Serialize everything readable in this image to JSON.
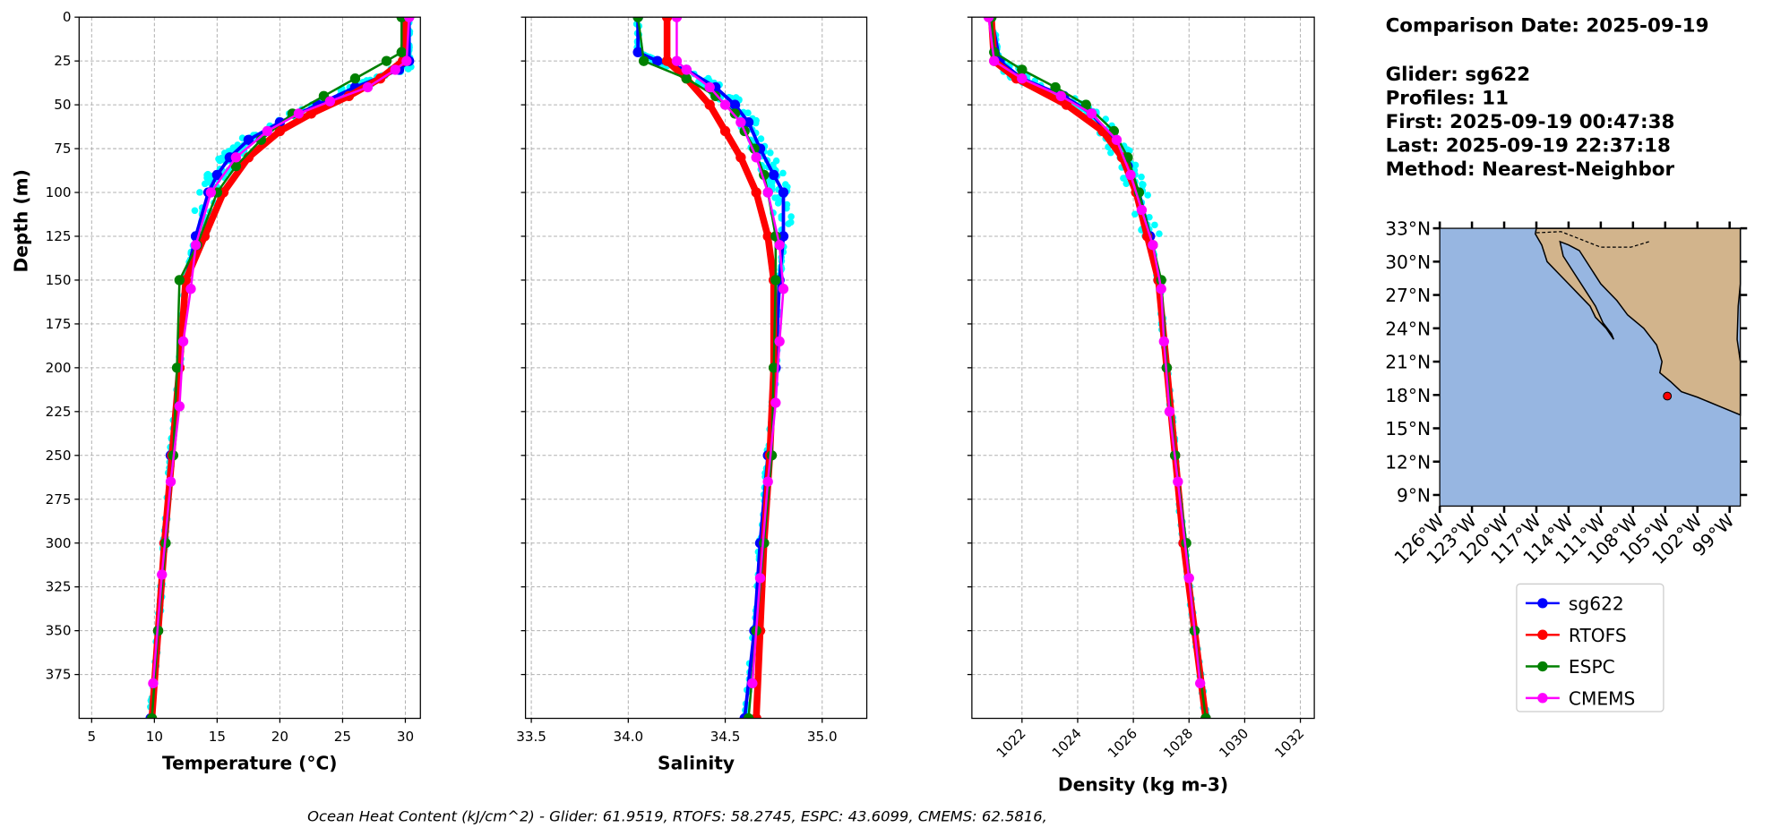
{
  "info": {
    "comparison_date": "Comparison Date: 2025-09-19",
    "glider": "Glider: sg622",
    "profiles": "Profiles: 11",
    "first": "First: 2025-09-19 00:47:38",
    "last": "Last: 2025-09-19 22:37:18",
    "method": "Method: Nearest-Neighbor"
  },
  "footer": "Ocean Heat Content (kJ/cm^2) - Glider: 61.9519,  RTOFS: 58.2745,  ESPC: 43.6099,  CMEMS: 62.5816,",
  "colors": {
    "sg622": "#0000ff",
    "RTOFS": "#ff0000",
    "ESPC": "#008000",
    "CMEMS": "#ff00ff",
    "scatter": "#00ffff",
    "ocean": "#97b6e1",
    "land": "#d2b48c"
  },
  "legend": [
    "sg622",
    "RTOFS",
    "ESPC",
    "CMEMS"
  ],
  "chart_data": [
    {
      "type": "line",
      "title": "",
      "xlabel": "Temperature (°C)",
      "ylabel": "Depth (m)",
      "xlim": [
        4.0,
        31.2
      ],
      "ylim": [
        400,
        0
      ],
      "xticks": [
        5,
        10,
        15,
        20,
        25,
        30
      ],
      "yticks": [
        0,
        25,
        50,
        75,
        100,
        125,
        150,
        175,
        200,
        225,
        250,
        275,
        300,
        325,
        350,
        375
      ],
      "series": [
        {
          "name": "sg622",
          "depth": [
            0,
            25,
            30,
            40,
            50,
            60,
            70,
            80,
            90,
            100,
            125,
            150,
            200,
            250,
            300,
            350,
            400
          ],
          "values": [
            30.3,
            30.3,
            29.5,
            26,
            23,
            20,
            17.5,
            16,
            15,
            14.3,
            13.3,
            12.5,
            12,
            11.3,
            10.8,
            10.3,
            9.7
          ]
        },
        {
          "name": "RTOFS",
          "depth": [
            0,
            25,
            35,
            45,
            55,
            65,
            80,
            100,
            125,
            150,
            200,
            250,
            300,
            350,
            400
          ],
          "values": [
            30,
            29.8,
            28,
            25.5,
            22.5,
            20,
            17.5,
            15.5,
            14,
            12.5,
            12,
            11.4,
            10.8,
            10.3,
            9.8
          ]
        },
        {
          "name": "ESPC",
          "depth": [
            0,
            20,
            25,
            35,
            45,
            55,
            70,
            85,
            100,
            130,
            150,
            200,
            250,
            300,
            350,
            400
          ],
          "values": [
            29.7,
            29.7,
            28.5,
            26,
            23.5,
            21,
            18.5,
            16.5,
            15,
            13.4,
            12,
            11.8,
            11.5,
            10.9,
            10.3,
            9.8
          ]
        },
        {
          "name": "CMEMS",
          "depth": [
            0,
            25,
            30,
            40,
            48,
            55,
            65,
            80,
            100,
            130,
            155,
            185,
            222,
            265,
            318,
            380
          ],
          "values": [
            30.3,
            30.1,
            29.2,
            27,
            24,
            21.5,
            19,
            16.5,
            14.5,
            13.3,
            12.9,
            12.3,
            12,
            11.3,
            10.6,
            9.9
          ]
        }
      ]
    },
    {
      "type": "line",
      "title": "",
      "xlabel": "Salinity",
      "ylabel": "",
      "xlim": [
        33.47,
        35.23
      ],
      "ylim": [
        400,
        0
      ],
      "xticks": [
        33.5,
        34.0,
        34.5,
        35.0
      ],
      "series": [
        {
          "name": "sg622",
          "depth": [
            0,
            20,
            25,
            30,
            40,
            50,
            60,
            75,
            90,
            100,
            125,
            150,
            200,
            250,
            300,
            350,
            400
          ],
          "values": [
            34.05,
            34.05,
            34.15,
            34.3,
            34.45,
            34.55,
            34.62,
            34.68,
            34.75,
            34.8,
            34.8,
            34.78,
            34.76,
            34.72,
            34.68,
            34.65,
            34.6
          ]
        },
        {
          "name": "RTOFS",
          "depth": [
            0,
            25,
            35,
            50,
            65,
            80,
            100,
            125,
            150,
            200,
            250,
            300,
            350,
            400
          ],
          "values": [
            34.2,
            34.2,
            34.3,
            34.42,
            34.5,
            34.58,
            34.66,
            34.72,
            34.75,
            34.75,
            34.73,
            34.7,
            34.68,
            34.66
          ]
        },
        {
          "name": "ESPC",
          "depth": [
            0,
            25,
            35,
            45,
            55,
            65,
            75,
            90,
            100,
            125,
            150,
            200,
            250,
            300,
            350,
            400
          ],
          "values": [
            34.05,
            34.08,
            34.3,
            34.45,
            34.55,
            34.6,
            34.65,
            34.7,
            34.72,
            34.76,
            34.76,
            34.75,
            34.74,
            34.7,
            34.66,
            34.62
          ]
        },
        {
          "name": "CMEMS",
          "depth": [
            0,
            25,
            30,
            40,
            50,
            60,
            80,
            100,
            130,
            155,
            185,
            220,
            265,
            320,
            380
          ],
          "values": [
            34.25,
            34.25,
            34.3,
            34.42,
            34.5,
            34.58,
            34.66,
            34.72,
            34.78,
            34.8,
            34.78,
            34.76,
            34.72,
            34.68,
            34.64
          ]
        }
      ]
    },
    {
      "type": "line",
      "title": "",
      "xlabel": "Density (kg m-3)",
      "ylabel": "",
      "xlim": [
        1020.2,
        1032.5
      ],
      "ylim": [
        400,
        0
      ],
      "xticks": [
        1022,
        1024,
        1026,
        1028,
        1030,
        1032
      ],
      "series": [
        {
          "name": "sg622",
          "depth": [
            0,
            25,
            35,
            45,
            55,
            70,
            85,
            100,
            125,
            150,
            200,
            250,
            300,
            350,
            400
          ],
          "values": [
            1020.9,
            1021.2,
            1022,
            1023.5,
            1024.5,
            1025.3,
            1025.8,
            1026.2,
            1026.6,
            1026.9,
            1027.2,
            1027.5,
            1027.8,
            1028.2,
            1028.6
          ]
        },
        {
          "name": "RTOFS",
          "depth": [
            0,
            25,
            35,
            50,
            65,
            80,
            100,
            125,
            150,
            200,
            250,
            300,
            350,
            400
          ],
          "values": [
            1020.9,
            1021.0,
            1021.8,
            1023.6,
            1024.9,
            1025.6,
            1026.1,
            1026.5,
            1026.9,
            1027.2,
            1027.5,
            1027.8,
            1028.2,
            1028.6
          ]
        },
        {
          "name": "ESPC",
          "depth": [
            0,
            20,
            30,
            40,
            50,
            65,
            80,
            100,
            130,
            150,
            200,
            250,
            300,
            350,
            400
          ],
          "values": [
            1020.9,
            1021.0,
            1022.0,
            1023.2,
            1024.3,
            1025.3,
            1025.8,
            1026.2,
            1026.7,
            1027.0,
            1027.2,
            1027.5,
            1027.9,
            1028.2,
            1028.6
          ]
        },
        {
          "name": "CMEMS",
          "depth": [
            0,
            25,
            35,
            45,
            55,
            70,
            90,
            110,
            130,
            155,
            185,
            225,
            265,
            320,
            380
          ],
          "values": [
            1020.8,
            1021.0,
            1022.0,
            1023.4,
            1024.5,
            1025.4,
            1025.9,
            1026.3,
            1026.7,
            1027.0,
            1027.1,
            1027.3,
            1027.6,
            1028.0,
            1028.4
          ]
        }
      ]
    },
    {
      "type": "map",
      "lon_range": [
        -126,
        -98
      ],
      "lat_range": [
        8,
        33
      ],
      "lat_ticks": [
        "33°N",
        "30°N",
        "27°N",
        "24°N",
        "21°N",
        "18°N",
        "15°N",
        "12°N",
        "9°N"
      ],
      "lon_ticks": [
        "126°W",
        "123°W",
        "120°W",
        "117°W",
        "114°W",
        "111°W",
        "108°W",
        "105°W",
        "102°W",
        "99°W"
      ],
      "glider_position": {
        "lon": -104.8,
        "lat": 17.9
      }
    }
  ]
}
